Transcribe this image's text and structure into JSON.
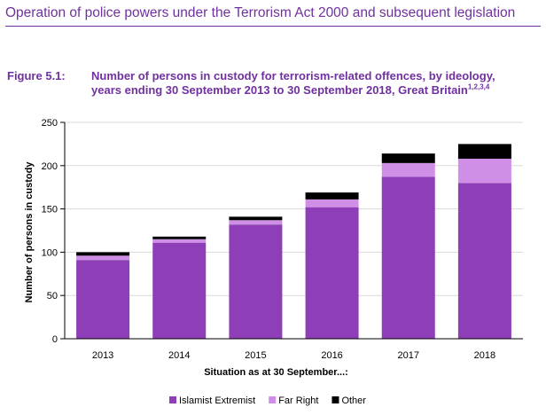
{
  "header": {
    "title": "Operation of police powers under the Terrorism Act 2000 and subsequent legislation"
  },
  "figure": {
    "label": "Figure 5.1:",
    "title_line1": "Number of persons in custody for terrorism-related offences, by ideology,",
    "title_line2": "years ending 30 September 2013 to 30 September 2018, Great Britain",
    "footnotes": "1,2,3,4"
  },
  "chart_data": {
    "type": "bar",
    "stacked": true,
    "categories": [
      "2013",
      "2014",
      "2015",
      "2016",
      "2017",
      "2018"
    ],
    "series": [
      {
        "name": "Islamist Extremist",
        "color": "#8e3fb7",
        "values": [
          91,
          111,
          132,
          152,
          187,
          180
        ]
      },
      {
        "name": "Far Right",
        "color": "#cf8fe6",
        "values": [
          5,
          4,
          5,
          9,
          16,
          28
        ]
      },
      {
        "name": "Other",
        "color": "#000000",
        "values": [
          4,
          3,
          4,
          8,
          11,
          17
        ]
      }
    ],
    "xlabel": "Situation as at 30 September...:",
    "ylabel": "Number of persons in custody",
    "ylim": [
      0,
      250
    ],
    "yticks": [
      0,
      50,
      100,
      150,
      200,
      250
    ],
    "yticks_labels": [
      "0",
      "50",
      "100",
      "150",
      "200",
      "250"
    ],
    "grid": true,
    "legend_position": "bottom"
  }
}
